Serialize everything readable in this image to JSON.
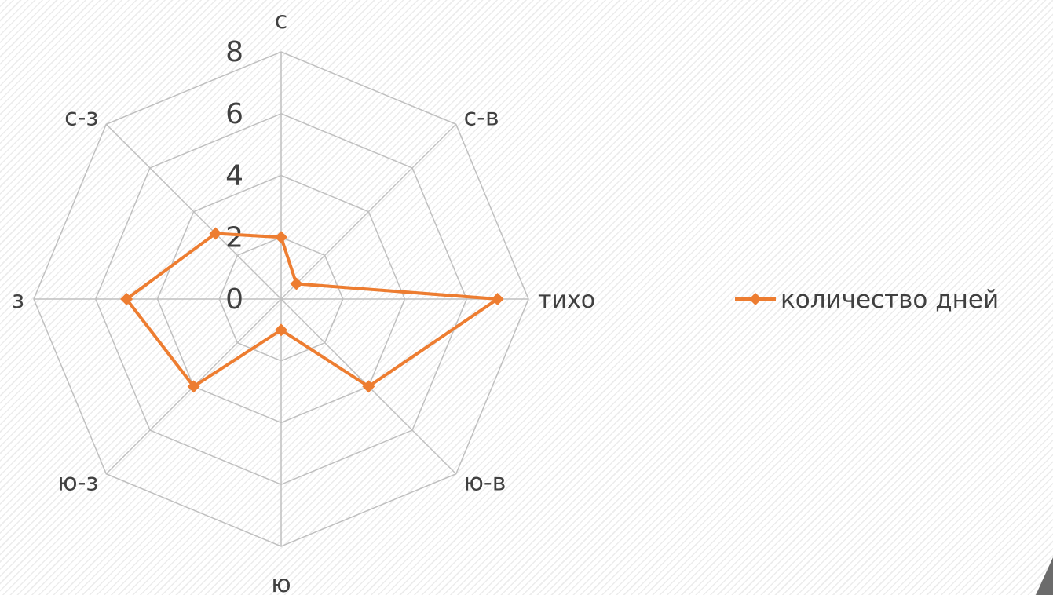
{
  "chart_data": {
    "type": "radar",
    "categories": [
      "с",
      "с-в",
      "тихо",
      "ю-в",
      "ю",
      "ю-з",
      "з",
      "с-з"
    ],
    "series": [
      {
        "name": "количество дней",
        "values": [
          2,
          0.7,
          7,
          4,
          1,
          4,
          5,
          3
        ],
        "color": "#ed7d31"
      }
    ],
    "rlim": [
      0,
      8
    ],
    "ticks": [
      "0",
      "2",
      "4",
      "6",
      "8"
    ],
    "legend": "right",
    "grid": true
  }
}
